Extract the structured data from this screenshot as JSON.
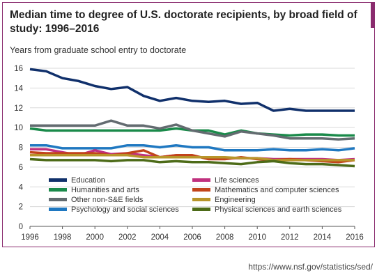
{
  "title": "Median time to degree of U.S. doctorate recipients, by broad field of study: 1996–2016",
  "subtitle": "Years from graduate school entry to doctorate",
  "source": "https://www.nsf.gov/statistics/sed/",
  "chart_data": {
    "type": "line",
    "title": "Median time to degree of U.S. doctorate recipients, by broad field of study: 1996–2016",
    "ylabel": "Years from graduate school entry to doctorate",
    "xlabel": "",
    "xlim": [
      1996,
      2016
    ],
    "ylim": [
      0,
      16
    ],
    "x_ticks": [
      1996,
      1998,
      2000,
      2002,
      2004,
      2006,
      2008,
      2010,
      2012,
      2014,
      2016
    ],
    "y_ticks": [
      0,
      2,
      4,
      6,
      8,
      10,
      12,
      14,
      16
    ],
    "grid": "horizontal",
    "legend_placement": "bottom",
    "x": [
      1996,
      1997,
      1998,
      1999,
      2000,
      2001,
      2002,
      2003,
      2004,
      2005,
      2006,
      2007,
      2008,
      2009,
      2010,
      2011,
      2012,
      2013,
      2014,
      2015,
      2016
    ],
    "series": [
      {
        "name": "Humanities and arts",
        "color": "#1a8a4a",
        "values": [
          9.9,
          9.7,
          9.7,
          9.7,
          9.7,
          9.7,
          9.7,
          9.7,
          9.7,
          9.9,
          9.7,
          9.7,
          9.3,
          9.7,
          9.4,
          9.3,
          9.2,
          9.3,
          9.3,
          9.2,
          9.2
        ]
      },
      {
        "name": "Other non-S&E fields",
        "color": "#636b70",
        "values": [
          10.2,
          10.2,
          10.2,
          10.2,
          10.2,
          10.7,
          10.2,
          10.2,
          9.9,
          10.3,
          9.7,
          9.4,
          9.1,
          9.6,
          9.4,
          9.2,
          8.9,
          8.9,
          8.9,
          8.8,
          8.9
        ]
      },
      {
        "name": "Psychology and social sciences",
        "color": "#1f78c1",
        "values": [
          8.2,
          8.2,
          7.9,
          7.9,
          7.9,
          7.9,
          8.2,
          8.2,
          8.0,
          8.2,
          8.0,
          8.0,
          7.7,
          7.7,
          7.7,
          7.8,
          7.7,
          7.7,
          7.8,
          7.7,
          7.9
        ]
      },
      {
        "name": "Life sciences",
        "color": "#c0307e",
        "values": [
          7.8,
          7.8,
          7.5,
          7.2,
          7.7,
          7.3,
          7.4,
          7.2,
          7.0,
          7.2,
          7.1,
          6.9,
          6.9,
          6.9,
          6.9,
          6.8,
          6.8,
          6.8,
          6.8,
          6.7,
          6.8
        ]
      },
      {
        "name": "Mathematics and computer sciences",
        "color": "#c2441b",
        "values": [
          7.5,
          7.4,
          7.4,
          7.4,
          7.4,
          7.2,
          7.4,
          7.7,
          7.0,
          7.2,
          7.2,
          6.8,
          6.8,
          7.0,
          6.8,
          6.7,
          6.8,
          6.7,
          6.6,
          6.5,
          6.7
        ]
      },
      {
        "name": "Engineering",
        "color": "#b8952a",
        "values": [
          7.2,
          7.2,
          7.2,
          7.2,
          7.2,
          7.2,
          7.2,
          7.0,
          7.0,
          7.0,
          7.0,
          7.0,
          7.0,
          6.9,
          6.9,
          6.7,
          6.7,
          6.7,
          6.7,
          6.7,
          6.7
        ]
      },
      {
        "name": "Physical sciences and earth sciences",
        "color": "#4d6b18",
        "values": [
          6.8,
          6.7,
          6.7,
          6.7,
          6.7,
          6.6,
          6.7,
          6.7,
          6.5,
          6.6,
          6.5,
          6.5,
          6.4,
          6.3,
          6.5,
          6.6,
          6.4,
          6.3,
          6.3,
          6.2,
          6.1
        ]
      },
      {
        "name": "Education",
        "color": "#10306b",
        "values": [
          15.9,
          15.7,
          15.0,
          14.7,
          14.2,
          13.9,
          14.1,
          13.2,
          12.7,
          13.0,
          12.7,
          12.6,
          12.7,
          12.4,
          12.5,
          11.7,
          11.9,
          11.7,
          11.7,
          11.7,
          11.7
        ]
      }
    ],
    "legend": [
      {
        "name": "Education",
        "color": "#10306b"
      },
      {
        "name": "Humanities and arts",
        "color": "#1a8a4a"
      },
      {
        "name": "Other non-S&E fields",
        "color": "#636b70"
      },
      {
        "name": "Psychology and social sciences",
        "color": "#1f78c1"
      },
      {
        "name": "Life sciences",
        "color": "#c0307e"
      },
      {
        "name": "Mathematics and computer sciences",
        "color": "#c2441b"
      },
      {
        "name": "Engineering",
        "color": "#b8952a"
      },
      {
        "name": "Physical sciences and earth sciences",
        "color": "#4d6b18"
      }
    ]
  }
}
